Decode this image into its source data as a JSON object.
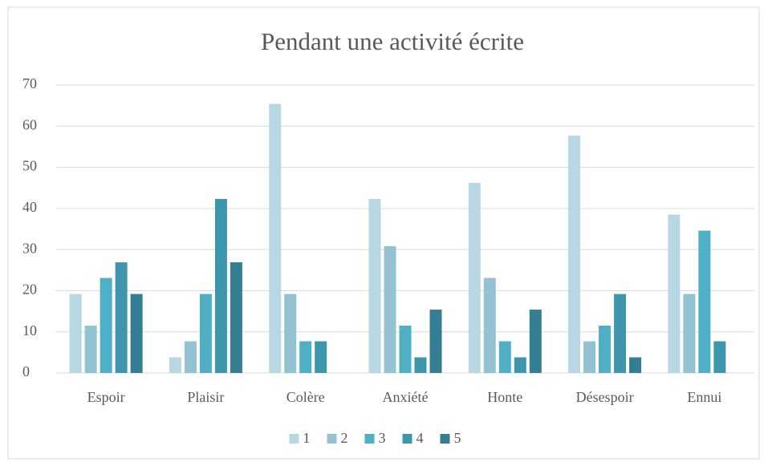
{
  "chart_data": {
    "type": "bar",
    "title": "Pendant une activité écrite",
    "categories": [
      "Espoir",
      "Plaisir",
      "Colère",
      "Anxiété",
      "Honte",
      "Désespoir",
      "Ennui"
    ],
    "series": [
      {
        "name": "1",
        "color": "#b7d7e3",
        "values": [
          19.2,
          3.8,
          65.4,
          42.3,
          46.2,
          57.7,
          38.5
        ]
      },
      {
        "name": "2",
        "color": "#93c3d3",
        "values": [
          11.5,
          7.7,
          19.2,
          30.8,
          23.1,
          7.7,
          19.2
        ]
      },
      {
        "name": "3",
        "color": "#4eafc5",
        "values": [
          23.1,
          19.2,
          7.7,
          11.5,
          7.7,
          11.5,
          34.6
        ]
      },
      {
        "name": "4",
        "color": "#3e96ac",
        "values": [
          26.9,
          42.3,
          7.7,
          3.8,
          3.8,
          19.2,
          7.7
        ]
      },
      {
        "name": "5",
        "color": "#347e93",
        "values": [
          19.2,
          26.9,
          0,
          15.4,
          15.4,
          3.8,
          0
        ]
      }
    ],
    "ylim": [
      0,
      70
    ],
    "yticks": [
      0,
      10,
      20,
      30,
      40,
      50,
      60,
      70
    ],
    "grid": true,
    "legend": "bottom"
  }
}
